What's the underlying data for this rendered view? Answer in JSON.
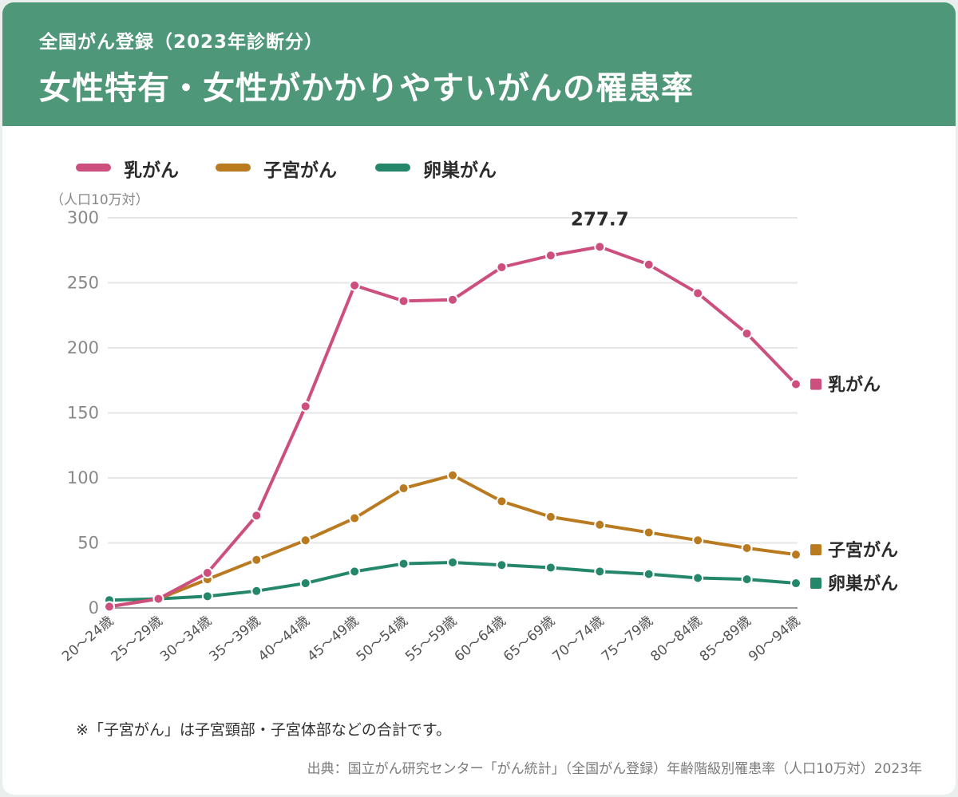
{
  "header": {
    "subtitle": "全国がん登録（2023年診断分）",
    "title": "女性特有・女性がかかりやすいがんの罹患率"
  },
  "colors": {
    "header_bg": "#4e9778",
    "breast": "#cc4f7e",
    "uterus": "#b97a20",
    "ovary": "#25876a"
  },
  "chart_data": {
    "type": "line",
    "ylabel": "（人口10万対）",
    "ylim": [
      0,
      300
    ],
    "yticks": [
      0,
      50,
      100,
      150,
      200,
      250,
      300
    ],
    "grid": true,
    "legend_position": "top-left",
    "categories": [
      "20～24歳",
      "25～29歳",
      "30～34歳",
      "35～39歳",
      "40～44歳",
      "45～49歳",
      "50～54歳",
      "55～59歳",
      "60～64歳",
      "65～69歳",
      "70～74歳",
      "75～79歳",
      "80～84歳",
      "85～89歳",
      "90～94歳"
    ],
    "series": [
      {
        "name": "乳がん",
        "color": "#cc4f7e",
        "end_label": "乳がん",
        "values": [
          1,
          7,
          27,
          71,
          155,
          248,
          236,
          237,
          262,
          271,
          277.7,
          264,
          242,
          211,
          172
        ]
      },
      {
        "name": "子宮がん",
        "color": "#b97a20",
        "end_label": "子宮がん",
        "values": [
          1,
          7,
          22,
          37,
          52,
          69,
          92,
          102,
          82,
          70,
          64,
          58,
          52,
          46,
          41
        ]
      },
      {
        "name": "卵巣がん",
        "color": "#25876a",
        "end_label": "卵巣がん",
        "values": [
          6,
          7,
          9,
          13,
          19,
          28,
          34,
          35,
          33,
          31,
          28,
          26,
          23,
          22,
          19
        ]
      }
    ],
    "annotations": [
      {
        "series": "乳がん",
        "category": "70～74歳",
        "text": "277.7"
      }
    ]
  },
  "footer": {
    "note": "※「子宮がん」は子宮頸部・子宮体部などの合計です。",
    "source": "出典：国立がん研究センター「がん統計」（全国がん登録）年齢階級別罹患率（人口10万対）2023年"
  }
}
